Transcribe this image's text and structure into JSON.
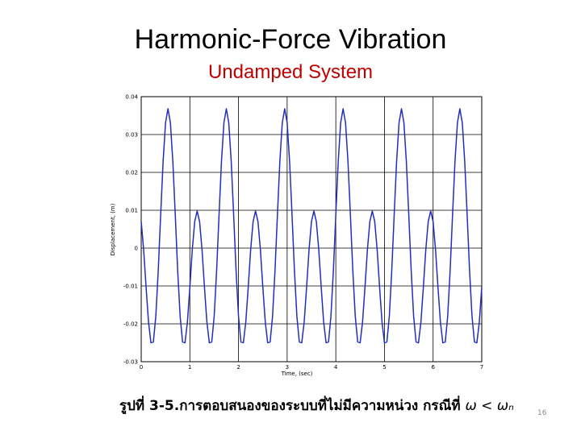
{
  "slide": {
    "caption": "รูปที่ 3-5.การตอบสนองของระบบที่ไม่มีความหน่วง กรณีที่",
    "caption_formula": "ω < ωₙ",
    "page_number": "16"
  },
  "chart_data": {
    "type": "line",
    "title": "Harmonic-Force Vibration",
    "subtitle": "Undamped System",
    "x_label": "Time, (sec)",
    "y_label": "Displacement, (m)",
    "xlim": [
      0,
      7
    ],
    "xticks": [
      0,
      1,
      2,
      3,
      4,
      5,
      6,
      7
    ],
    "ylim": [
      -0.03,
      0.04
    ],
    "yticks": [
      -0.03,
      -0.02,
      -0.01,
      0,
      0.01,
      0.02,
      0.03,
      0.04
    ],
    "grid": true,
    "x": [
      0,
      0.05,
      0.1,
      0.15,
      0.2,
      0.25,
      0.3,
      0.35,
      0.4,
      0.45,
      0.5,
      0.55,
      0.6,
      0.65,
      0.7,
      0.75,
      0.8,
      0.85,
      0.9,
      0.95,
      1,
      1.05,
      1.1,
      1.15,
      1.2,
      1.25,
      1.3,
      1.35,
      1.4,
      1.45,
      1.5,
      1.55,
      1.6,
      1.65,
      1.7,
      1.75,
      1.8,
      1.85,
      1.9,
      1.95,
      2,
      2.05,
      2.1,
      2.15,
      2.2,
      2.25,
      2.3,
      2.35,
      2.4,
      2.45,
      2.5,
      2.55,
      2.6,
      2.65,
      2.7,
      2.75,
      2.8,
      2.85,
      2.9,
      2.95,
      3,
      3.05,
      3.1,
      3.15,
      3.2,
      3.25,
      3.3,
      3.35,
      3.4,
      3.45,
      3.5,
      3.55,
      3.6,
      3.65,
      3.7,
      3.75,
      3.8,
      3.85,
      3.9,
      3.95,
      4,
      4.05,
      4.1,
      4.15,
      4.2,
      4.25,
      4.3,
      4.35,
      4.4,
      4.45,
      4.5,
      4.55,
      4.6,
      4.65,
      4.7,
      4.75,
      4.8,
      4.85,
      4.9,
      4.95,
      5,
      5.05,
      5.1,
      5.15,
      5.2,
      5.25,
      5.3,
      5.35,
      5.4,
      5.45,
      5.5,
      5.55,
      5.6,
      5.65,
      5.7,
      5.75,
      5.8,
      5.85,
      5.9,
      5.95,
      6,
      6.05,
      6.1,
      6.15,
      6.2,
      6.25,
      6.3,
      6.35,
      6.4,
      6.45,
      6.5,
      6.55,
      6.6,
      6.65,
      6.7,
      6.75,
      6.8,
      6.85,
      6.9,
      6.95,
      7
    ],
    "series": [
      {
        "color": "#1f2fbf",
        "values": [
          0.007,
          -0.0004,
          -0.0103,
          -0.0195,
          -0.025,
          -0.0248,
          -0.018,
          -0.006,
          0.0088,
          0.0229,
          0.0331,
          0.0368,
          0.0331,
          0.0229,
          0.0088,
          -0.006,
          -0.018,
          -0.0248,
          -0.025,
          -0.0195,
          -0.0103,
          -0.0004,
          0.007,
          0.0098,
          0.007,
          -0.0004,
          -0.0103,
          -0.0195,
          -0.025,
          -0.0248,
          -0.018,
          -0.006,
          0.0088,
          0.0229,
          0.0331,
          0.0368,
          0.0331,
          0.0229,
          0.0088,
          -0.006,
          -0.018,
          -0.0248,
          -0.025,
          -0.0195,
          -0.0103,
          -0.0004,
          0.007,
          0.0098,
          0.007,
          -0.0004,
          -0.0103,
          -0.0195,
          -0.025,
          -0.0248,
          -0.018,
          -0.006,
          0.0088,
          0.0229,
          0.0331,
          0.0368,
          0.0331,
          0.0229,
          0.0088,
          -0.006,
          -0.018,
          -0.0248,
          -0.025,
          -0.0195,
          -0.0103,
          -0.0004,
          0.007,
          0.0098,
          0.007,
          -0.0004,
          -0.0103,
          -0.0195,
          -0.025,
          -0.0248,
          -0.018,
          -0.006,
          0.0088,
          0.0229,
          0.0331,
          0.0368,
          0.0331,
          0.0229,
          0.0088,
          -0.006,
          -0.018,
          -0.0248,
          -0.025,
          -0.0195,
          -0.0103,
          -0.0004,
          0.007,
          0.0098,
          0.007,
          -0.0004,
          -0.0103,
          -0.0195,
          -0.025,
          -0.0248,
          -0.018,
          -0.006,
          0.0088,
          0.0229,
          0.0331,
          0.0368,
          0.0331,
          0.0229,
          0.0088,
          -0.006,
          -0.018,
          -0.0248,
          -0.025,
          -0.0195,
          -0.0103,
          -0.0004,
          0.007,
          0.0098,
          0.007,
          -0.0004,
          -0.0103,
          -0.0195,
          -0.025,
          -0.0248,
          -0.018,
          -0.006,
          0.0088,
          0.0229,
          0.0331,
          0.0368,
          0.0331,
          0.0229,
          0.0088,
          -0.006,
          -0.018,
          -0.0248,
          -0.025,
          -0.0195,
          -0.0103
        ]
      }
    ]
  }
}
